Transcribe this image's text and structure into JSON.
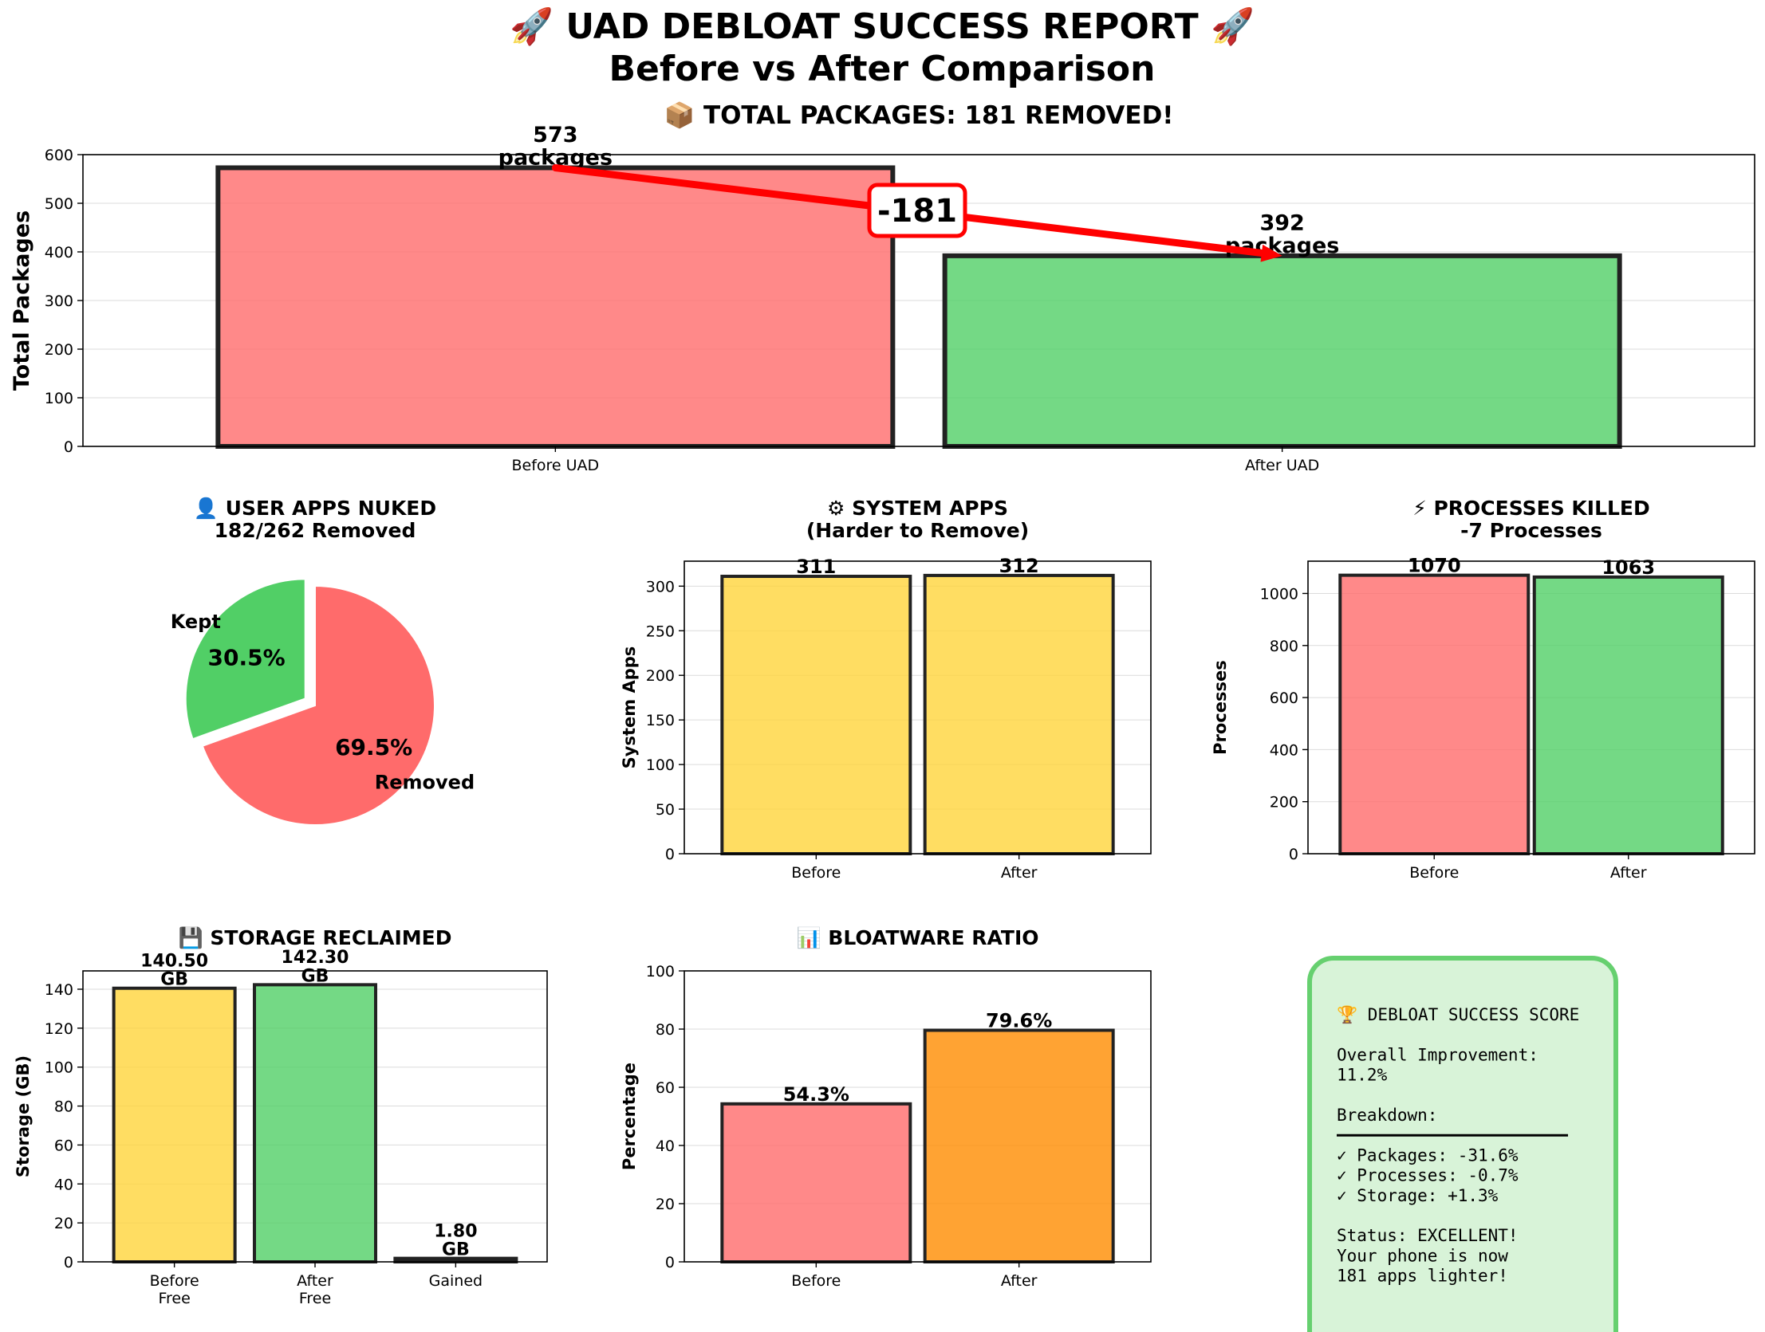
{
  "page": {
    "title_line1": "🚀 UAD DEBLOAT SUCCESS REPORT 🚀",
    "title_line2": "Before vs After Comparison"
  },
  "colors": {
    "red": "#ff6b6b",
    "green": "#51cf66",
    "yellow": "#ffd43b",
    "orange": "#ff8c00",
    "arrow": "#ff0000",
    "edge": "#222222",
    "summary_bg": "#d8f3d8",
    "summary_border": "#66d06f"
  },
  "chart_data": [
    {
      "id": "packages",
      "type": "bar",
      "title": "📦 TOTAL PACKAGES: 181 REMOVED!",
      "ylabel": "Total Packages",
      "categories": [
        "Before UAD",
        "After UAD"
      ],
      "values": [
        573,
        392
      ],
      "data_labels": [
        [
          "573",
          "packages"
        ],
        [
          "392",
          "packages"
        ]
      ],
      "colors": [
        "red",
        "green"
      ],
      "ylim": [
        0,
        600
      ],
      "yticks": [
        0,
        100,
        200,
        300,
        400,
        500,
        600
      ],
      "grid": true,
      "annotation": {
        "text": "-181",
        "from_value": 573,
        "to_value": 392
      }
    },
    {
      "id": "user_apps",
      "type": "pie",
      "title": [
        "👤 USER APPS NUKED",
        "182/262 Removed"
      ],
      "labels": [
        "Removed",
        "Kept"
      ],
      "values": [
        69.5,
        30.5
      ],
      "pct_labels": [
        "69.5%",
        "30.5%"
      ],
      "colors": [
        "red",
        "green"
      ],
      "explode": [
        0,
        0.1
      ]
    },
    {
      "id": "system_apps",
      "type": "bar",
      "title": [
        "⚙ SYSTEM APPS",
        "(Harder to Remove)"
      ],
      "ylabel": "System Apps",
      "categories": [
        "Before",
        "After"
      ],
      "values": [
        311,
        312
      ],
      "data_labels": [
        "311",
        "312"
      ],
      "colors": [
        "yellow",
        "yellow"
      ],
      "ylim": [
        0,
        328
      ],
      "yticks": [
        0,
        50,
        100,
        150,
        200,
        250,
        300
      ],
      "grid": true
    },
    {
      "id": "processes",
      "type": "bar",
      "title": [
        "⚡ PROCESSES KILLED",
        "-7 Processes"
      ],
      "ylabel": "Processes",
      "categories": [
        "Before",
        "After"
      ],
      "values": [
        1070,
        1063
      ],
      "data_labels": [
        "1070",
        "1063"
      ],
      "colors": [
        "red",
        "green"
      ],
      "ylim": [
        0,
        1124
      ],
      "yticks": [
        0,
        200,
        400,
        600,
        800,
        1000
      ],
      "grid": true
    },
    {
      "id": "storage",
      "type": "bar",
      "title": "💾 STORAGE RECLAIMED",
      "ylabel": "Storage (GB)",
      "categories": [
        [
          "Before",
          "Free"
        ],
        [
          "After",
          "Free"
        ],
        [
          "Gained"
        ]
      ],
      "values": [
        140.5,
        142.3,
        1.8
      ],
      "data_labels": [
        [
          "140.50",
          "GB"
        ],
        [
          "142.30",
          "GB"
        ],
        [
          "1.80",
          "GB"
        ]
      ],
      "colors": [
        "yellow",
        "green",
        "edge"
      ],
      "ylim": [
        0,
        149.4
      ],
      "yticks": [
        0,
        20,
        40,
        60,
        80,
        100,
        120,
        140
      ],
      "grid": true
    },
    {
      "id": "bloatware",
      "type": "bar",
      "title": "📊 BLOATWARE RATIO",
      "ylabel": "Percentage",
      "categories": [
        "Before",
        "After"
      ],
      "values": [
        54.3,
        79.6
      ],
      "data_labels": [
        "54.3%",
        "79.6%"
      ],
      "colors": [
        "red",
        "orange"
      ],
      "ylim": [
        0,
        100
      ],
      "yticks": [
        0,
        20,
        40,
        60,
        80,
        100
      ],
      "grid": true
    }
  ],
  "summary": {
    "lines": [
      "🏆 DEBLOAT SUCCESS SCORE",
      "",
      "Overall Improvement:",
      "11.2%",
      "",
      "Breakdown:",
      "━━━━━━━━━━━━━━━━━━━━━━━━━",
      "✓ Packages: -31.6%",
      "✓ Processes: -0.7%",
      "✓ Storage: +1.3%",
      "",
      "Status: EXCELLENT!",
      "Your phone is now",
      "181 apps lighter!"
    ]
  }
}
